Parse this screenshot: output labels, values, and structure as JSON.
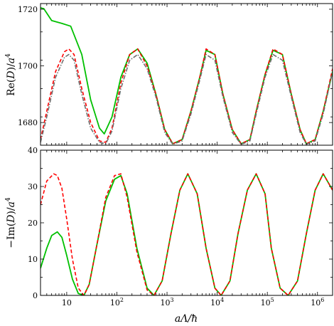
{
  "chart_data": [
    {
      "type": "line",
      "panel": "top",
      "xlabel": "",
      "ylabel": "Re(D)/a^4",
      "x_scale": "log",
      "xlim": [
        3,
        2000000
      ],
      "ylim": [
        1672,
        1722
      ],
      "yticks": [
        1680,
        1700,
        1720
      ],
      "ytick_labels": [
        "1680",
        "1700",
        "1720"
      ],
      "grid": false,
      "legend": "none",
      "series": [
        {
          "color": "#00c000",
          "style": "solid",
          "x": [
            3,
            3.5,
            5,
            8,
            12,
            20,
            30,
            45,
            56,
            80,
            120,
            180,
            260,
            400,
            600,
            900,
            1300,
            2000,
            3000,
            4500,
            6000,
            9000,
            13000,
            20000,
            30000,
            45000,
            60000,
            90000,
            130000,
            200000,
            300000,
            450000,
            600000,
            900000,
            1300000,
            2000000
          ],
          "y": [
            1720.5,
            1720.2,
            1716,
            1715,
            1714,
            1704,
            1688,
            1678,
            1676,
            1682,
            1696,
            1704,
            1706,
            1701,
            1690,
            1677.5,
            1672.5,
            1674,
            1684,
            1696,
            1705.5,
            1704,
            1690,
            1677.5,
            1672.5,
            1674,
            1684,
            1697,
            1705.5,
            1704,
            1690,
            1677.5,
            1672.5,
            1674,
            1684,
            1698
          ]
        },
        {
          "color": "#ff0000",
          "style": "dashed",
          "x": [
            3,
            4,
            6,
            9,
            11,
            14,
            20,
            30,
            45,
            60,
            80,
            120,
            180,
            260,
            400,
            600,
            900,
            1300,
            2000,
            3000,
            4500,
            6000,
            9000,
            13000,
            20000,
            30000,
            45000,
            60000,
            90000,
            130000,
            200000,
            300000,
            450000,
            600000,
            900000,
            1300000,
            2000000
          ],
          "y": [
            1674,
            1684,
            1698,
            1705,
            1706,
            1704,
            1692,
            1680,
            1673.5,
            1673,
            1678,
            1694,
            1704,
            1706,
            1700,
            1690,
            1677.5,
            1672.5,
            1674,
            1684,
            1696,
            1706,
            1704,
            1690,
            1677.5,
            1672.5,
            1674,
            1684,
            1697,
            1706,
            1704,
            1690,
            1677.5,
            1672.5,
            1674,
            1684,
            1699
          ]
        },
        {
          "color": "#707070",
          "style": "dashdot",
          "x": [
            3,
            4,
            6,
            9,
            11,
            14,
            20,
            30,
            45,
            60,
            80,
            120,
            180,
            260,
            400,
            600,
            900,
            1300,
            2000,
            3000,
            4500,
            6000,
            9000,
            13000,
            20000,
            30000,
            45000,
            60000,
            90000,
            130000,
            200000,
            300000,
            450000,
            600000,
            900000,
            1300000,
            2000000
          ],
          "y": [
            1673,
            1682,
            1696,
            1703,
            1704,
            1702,
            1690,
            1678,
            1673,
            1672.5,
            1677,
            1692,
            1702,
            1704,
            1699,
            1689,
            1676.5,
            1672.3,
            1673.5,
            1683,
            1695,
            1704,
            1702,
            1689,
            1676.5,
            1672.3,
            1673.5,
            1683,
            1696,
            1704,
            1702,
            1689,
            1676.5,
            1672.3,
            1673.5,
            1683,
            1698
          ]
        }
      ]
    },
    {
      "type": "line",
      "panel": "bottom",
      "xlabel": "aΛ/ħ",
      "ylabel": "−Im(D)/a^4",
      "x_scale": "log",
      "xlim": [
        3,
        2000000
      ],
      "ylim": [
        0,
        40
      ],
      "yticks": [
        0,
        10,
        20,
        30,
        40
      ],
      "ytick_labels": [
        "0",
        "10",
        "20",
        "30",
        "40"
      ],
      "xticks": [
        10,
        100,
        1000,
        10000,
        100000,
        1000000
      ],
      "xtick_labels": [
        "10",
        "10",
        "10",
        "10",
        "10",
        "10"
      ],
      "xtick_exponents": [
        "",
        "2",
        "3",
        "4",
        "5",
        "6"
      ],
      "grid": false,
      "legend": "none",
      "series": [
        {
          "color": "#00c000",
          "style": "solid",
          "x": [
            3,
            4,
            5,
            6.5,
            8,
            10,
            13,
            17,
            22,
            28,
            40,
            60,
            90,
            120,
            160,
            250,
            400,
            550,
            800,
            1200,
            1800,
            2600,
            4000,
            6000,
            9000,
            12000,
            18000,
            26000,
            40000,
            60000,
            90000,
            120000,
            180000,
            260000,
            400000,
            600000,
            900000,
            1300000,
            2000000
          ],
          "y": [
            7.5,
            13,
            16.5,
            17.5,
            16,
            11,
            4.5,
            0.5,
            0,
            3,
            14,
            26,
            32,
            33,
            28,
            13,
            2,
            0,
            4,
            17,
            29,
            33.5,
            28,
            13,
            2,
            0,
            4,
            17,
            29,
            33.5,
            28,
            13,
            2,
            0,
            4,
            17,
            29,
            33.5,
            29
          ]
        },
        {
          "color": "#ff0000",
          "style": "dashed",
          "x": [
            3,
            4,
            5.5,
            6.5,
            8,
            10,
            13,
            17,
            22,
            28,
            40,
            60,
            90,
            120,
            160,
            250,
            400,
            550,
            800,
            1200,
            1800,
            2600,
            4000,
            6000,
            9000,
            12000,
            18000,
            26000,
            40000,
            60000,
            90000,
            120000,
            180000,
            260000,
            400000,
            600000,
            900000,
            1300000,
            2000000
          ],
          "y": [
            25,
            31.5,
            33.5,
            33,
            29.5,
            21,
            10,
            2,
            0,
            3,
            14,
            27,
            33,
            33.5,
            27,
            12,
            1.5,
            0,
            4,
            17,
            29,
            33.5,
            28,
            13,
            2,
            0,
            4,
            17,
            29,
            33.5,
            28,
            13,
            2,
            0,
            4,
            17,
            29,
            33.5,
            29
          ]
        }
      ]
    }
  ]
}
